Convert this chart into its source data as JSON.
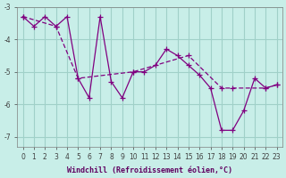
{
  "xlabel": "Windchill (Refroidissement éolien,°C)",
  "ylabel": "",
  "line_color": "#800080",
  "bg_color": "#c8eee8",
  "grid_color": "#a0d0c8",
  "xlim": [
    0,
    23
  ],
  "ylim": [
    -7.3,
    -3.0
  ],
  "yticks": [
    -7,
    -6,
    -5,
    -4,
    -3
  ],
  "xticks": [
    0,
    1,
    2,
    3,
    4,
    5,
    6,
    7,
    8,
    9,
    10,
    11,
    12,
    13,
    14,
    15,
    16,
    17,
    18,
    19,
    20,
    21,
    22,
    23
  ],
  "line1_x": [
    0,
    1,
    2,
    3,
    4,
    5,
    6,
    7,
    8,
    9,
    10,
    11,
    12,
    13,
    14,
    15,
    16,
    17,
    18,
    19,
    20,
    21,
    22,
    23
  ],
  "line1_y": [
    -3.3,
    -3.6,
    -3.3,
    -3.6,
    -3.3,
    -5.2,
    -5.8,
    -3.3,
    -5.3,
    -5.8,
    -5.0,
    -5.0,
    -4.8,
    -4.3,
    -4.5,
    -4.8,
    -5.1,
    -5.5,
    -6.8,
    -6.8,
    -6.2,
    -5.2,
    -5.5,
    -5.4
  ],
  "line2_x": [
    0,
    3,
    5,
    10,
    15,
    18,
    19,
    22,
    23
  ],
  "line2_y": [
    -3.3,
    -3.6,
    -5.2,
    -5.0,
    -4.5,
    -5.5,
    -5.5,
    -5.5,
    -5.4
  ]
}
